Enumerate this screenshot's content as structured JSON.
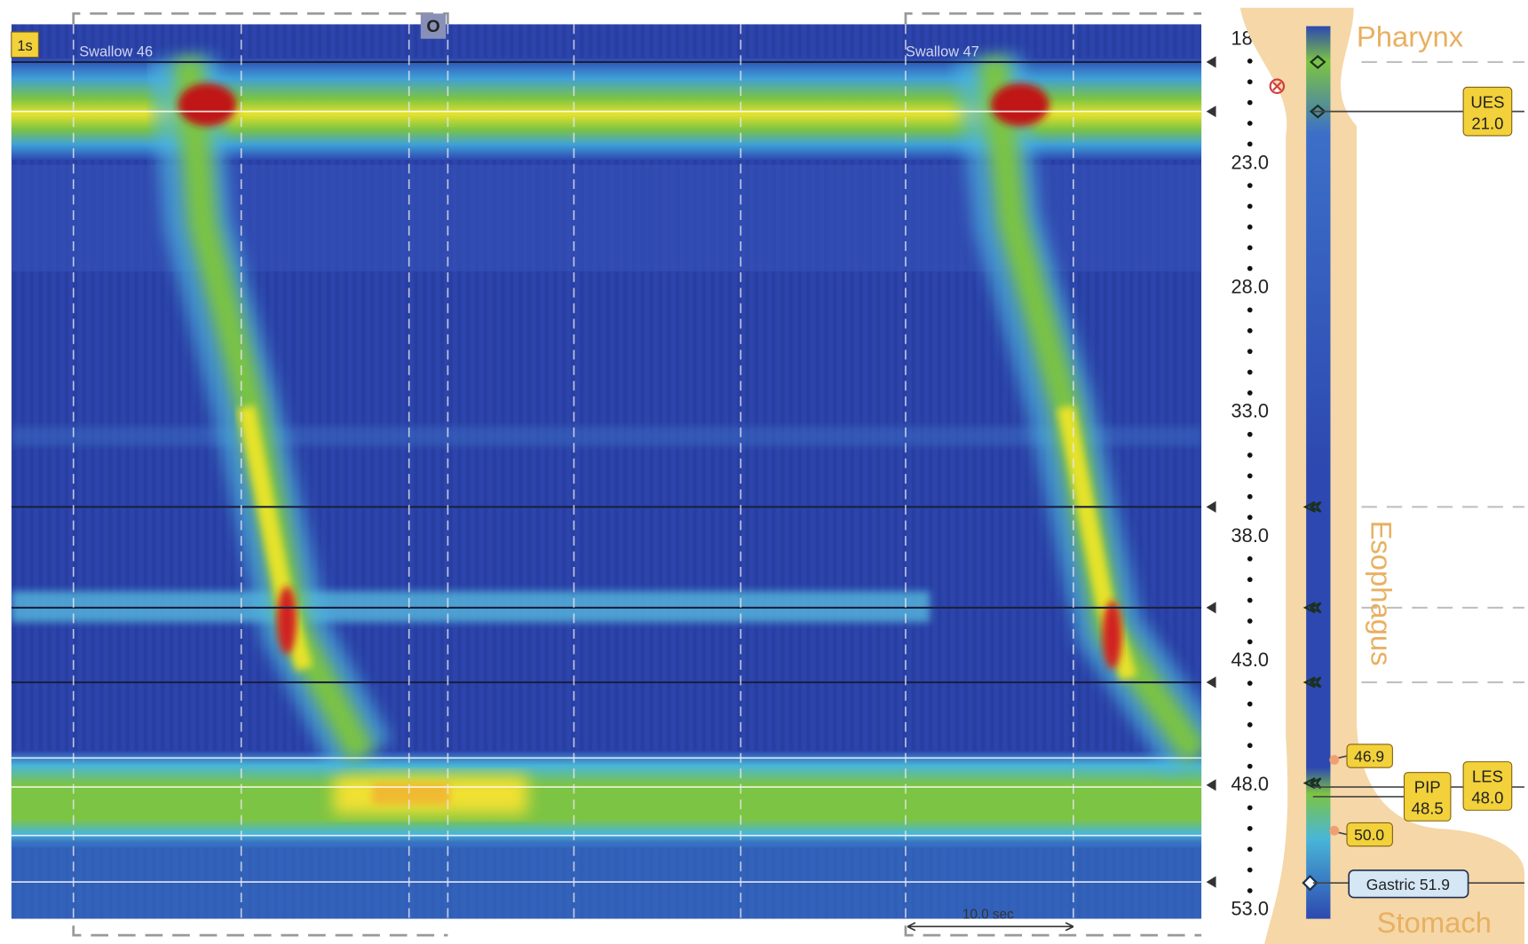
{
  "plot": {
    "time_marker": "1s",
    "swallows": [
      "Swallow 46",
      "Swallow 47"
    ],
    "scale_label": "10.0 sec",
    "event_marker": "O"
  },
  "depth_axis": {
    "ticks": [
      "18.0",
      "23.0",
      "28.0",
      "33.0",
      "38.0",
      "43.0",
      "48.0",
      "53.0"
    ]
  },
  "anatomy": {
    "regions": [
      "Pharynx",
      "Esophagus",
      "Stomach"
    ],
    "ues": {
      "label": "UES",
      "value": "21.0"
    },
    "les": {
      "label": "LES",
      "value": "48.0"
    },
    "pip": {
      "label": "PIP",
      "value": "48.5"
    },
    "les_upper": "46.9",
    "les_lower": "50.0",
    "gastric": "Gastric 51.9"
  }
}
